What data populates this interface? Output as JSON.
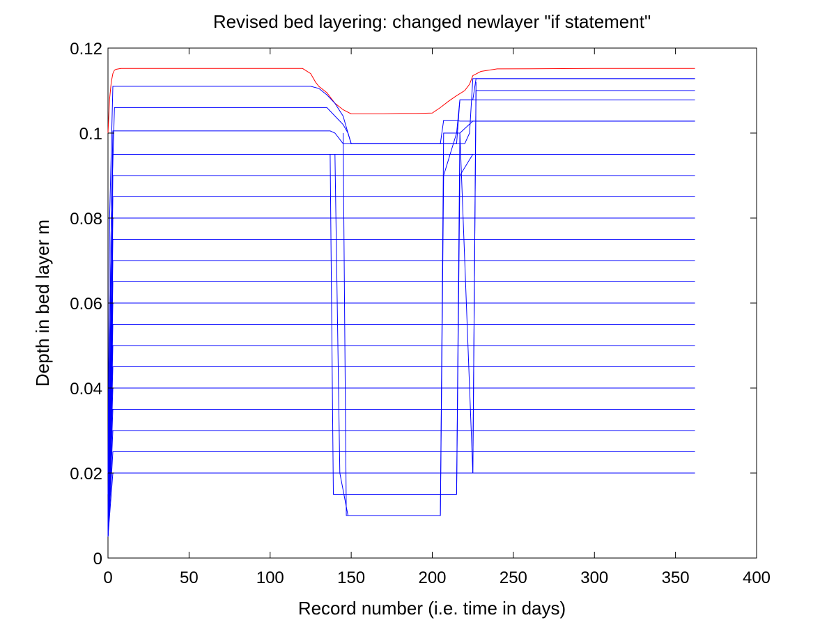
{
  "chart_data": {
    "type": "line",
    "title": "Revised bed layering: changed newlayer \"if statement\"",
    "xlabel": "Record number (i.e. time in days)",
    "ylabel": "Depth in bed layer m",
    "xlim": [
      0,
      400
    ],
    "ylim": [
      0,
      0.12
    ],
    "xticks": [
      "0",
      "50",
      "100",
      "150",
      "200",
      "250",
      "300",
      "350",
      "400"
    ],
    "yticks": [
      "0",
      "0.02",
      "0.04",
      "0.06",
      "0.08",
      "0.1",
      "0.12"
    ],
    "grid": false,
    "legend": "none",
    "series": [
      {
        "color": "#ff0000",
        "x": [
          0,
          1,
          2,
          3,
          4,
          5,
          8,
          120,
          125,
          128,
          130,
          135,
          140,
          145,
          150,
          160,
          170,
          180,
          190,
          200,
          205,
          210,
          215,
          220,
          223,
          225,
          230,
          240,
          300,
          362
        ],
        "y": [
          0.1,
          0.108,
          0.112,
          0.114,
          0.1148,
          0.115,
          0.1152,
          0.1152,
          0.114,
          0.112,
          0.111,
          0.1095,
          0.107,
          0.1055,
          0.1045,
          0.1045,
          0.1045,
          0.1046,
          0.1046,
          0.1047,
          0.106,
          0.1075,
          0.1088,
          0.11,
          0.1115,
          0.1135,
          0.1145,
          0.1151,
          0.1152,
          0.1152
        ]
      },
      {
        "color": "#0000ff",
        "x": [
          0,
          1,
          3,
          125,
          130,
          135,
          140,
          145,
          148,
          150,
          200,
          205,
          210,
          215,
          220,
          223,
          225,
          362
        ],
        "y": [
          0.02,
          0.08,
          0.111,
          0.111,
          0.1105,
          0.109,
          0.107,
          0.104,
          0.1,
          0.0975,
          0.0975,
          0.0975,
          0.0975,
          0.0975,
          0.0975,
          0.1,
          0.1128,
          0.1128
        ]
      },
      {
        "color": "#0000ff",
        "x": [
          0,
          2,
          4,
          135,
          140,
          145,
          148,
          150,
          215,
          217,
          362
        ],
        "y": [
          0.015,
          0.08,
          0.106,
          0.106,
          0.104,
          0.102,
          0.1,
          0.0975,
          0.0975,
          0.1078,
          0.1078
        ]
      },
      {
        "color": "#0000ff",
        "x": [
          0,
          2,
          3,
          137,
          140,
          145,
          205,
          207,
          215,
          217,
          362
        ],
        "y": [
          0.01,
          0.08,
          0.1005,
          0.1005,
          0.1,
          0.0975,
          0.0975,
          0.103,
          0.103,
          0.1028,
          0.1028
        ]
      },
      {
        "color": "#0000ff",
        "x": [
          0,
          2,
          3,
          137,
          139,
          362
        ],
        "y": [
          0.008,
          0.08,
          0.095,
          0.095,
          0.095,
          0.095
        ]
      },
      {
        "color": "#0000ff",
        "x": [
          0,
          3,
          137,
          362
        ],
        "y": [
          0.005,
          0.09,
          0.09,
          0.09
        ]
      },
      {
        "color": "#0000ff",
        "x": [
          0,
          3,
          137,
          362
        ],
        "y": [
          0.005,
          0.085,
          0.085,
          0.085
        ]
      },
      {
        "color": "#0000ff",
        "x": [
          0,
          3,
          137,
          362
        ],
        "y": [
          0.005,
          0.08,
          0.08,
          0.08
        ]
      },
      {
        "color": "#0000ff",
        "x": [
          0,
          3,
          137,
          362
        ],
        "y": [
          0.005,
          0.075,
          0.075,
          0.075
        ]
      },
      {
        "color": "#0000ff",
        "x": [
          0,
          3,
          137,
          362
        ],
        "y": [
          0.005,
          0.07,
          0.07,
          0.07
        ]
      },
      {
        "color": "#0000ff",
        "x": [
          0,
          3,
          137,
          362
        ],
        "y": [
          0.005,
          0.065,
          0.065,
          0.065
        ]
      },
      {
        "color": "#0000ff",
        "x": [
          0,
          3,
          137,
          362
        ],
        "y": [
          0.005,
          0.06,
          0.06,
          0.06
        ]
      },
      {
        "color": "#0000ff",
        "x": [
          0,
          3,
          137,
          362
        ],
        "y": [
          0.005,
          0.055,
          0.055,
          0.055
        ]
      },
      {
        "color": "#0000ff",
        "x": [
          0,
          3,
          137,
          362
        ],
        "y": [
          0.005,
          0.05,
          0.05,
          0.05
        ]
      },
      {
        "color": "#0000ff",
        "x": [
          0,
          3,
          137,
          362
        ],
        "y": [
          0.005,
          0.045,
          0.045,
          0.045
        ]
      },
      {
        "color": "#0000ff",
        "x": [
          0,
          3,
          137,
          362
        ],
        "y": [
          0.005,
          0.04,
          0.04,
          0.04
        ]
      },
      {
        "color": "#0000ff",
        "x": [
          0,
          3,
          137,
          362
        ],
        "y": [
          0.005,
          0.035,
          0.035,
          0.035
        ]
      },
      {
        "color": "#0000ff",
        "x": [
          0,
          3,
          137,
          362
        ],
        "y": [
          0.005,
          0.03,
          0.03,
          0.03
        ]
      },
      {
        "color": "#0000ff",
        "x": [
          0,
          3,
          137,
          362
        ],
        "y": [
          0.005,
          0.025,
          0.025,
          0.025
        ]
      },
      {
        "color": "#0000ff",
        "x": [
          0,
          3,
          137,
          362
        ],
        "y": [
          0.005,
          0.02,
          0.02,
          0.02
        ]
      },
      {
        "color": "#0000ff",
        "x": [
          137,
          139,
          145,
          215,
          217,
          225,
          362
        ],
        "y": [
          0.095,
          0.015,
          0.015,
          0.015,
          0.09,
          0.095,
          0.095
        ]
      },
      {
        "color": "#0000ff",
        "x": [
          140,
          143,
          148,
          205,
          207,
          215,
          217,
          225,
          362
        ],
        "y": [
          0.095,
          0.02,
          0.01,
          0.01,
          0.09,
          0.1,
          0.1,
          0.1028,
          0.1028
        ]
      },
      {
        "color": "#0000ff",
        "x": [
          145,
          147,
          205,
          207,
          215,
          217,
          225,
          227,
          362
        ],
        "y": [
          0.1,
          0.01,
          0.01,
          0.1,
          0.1,
          0.1078,
          0.1078,
          0.1128,
          0.1128
        ]
      },
      {
        "color": "#0000ff",
        "x": [
          215,
          217,
          225,
          227,
          362
        ],
        "y": [
          0.015,
          0.1,
          0.02,
          0.11,
          0.11
        ]
      },
      {
        "color": "#0000ff",
        "x": [
          225,
          227
        ],
        "y": [
          0.02,
          0.112
        ]
      }
    ]
  }
}
